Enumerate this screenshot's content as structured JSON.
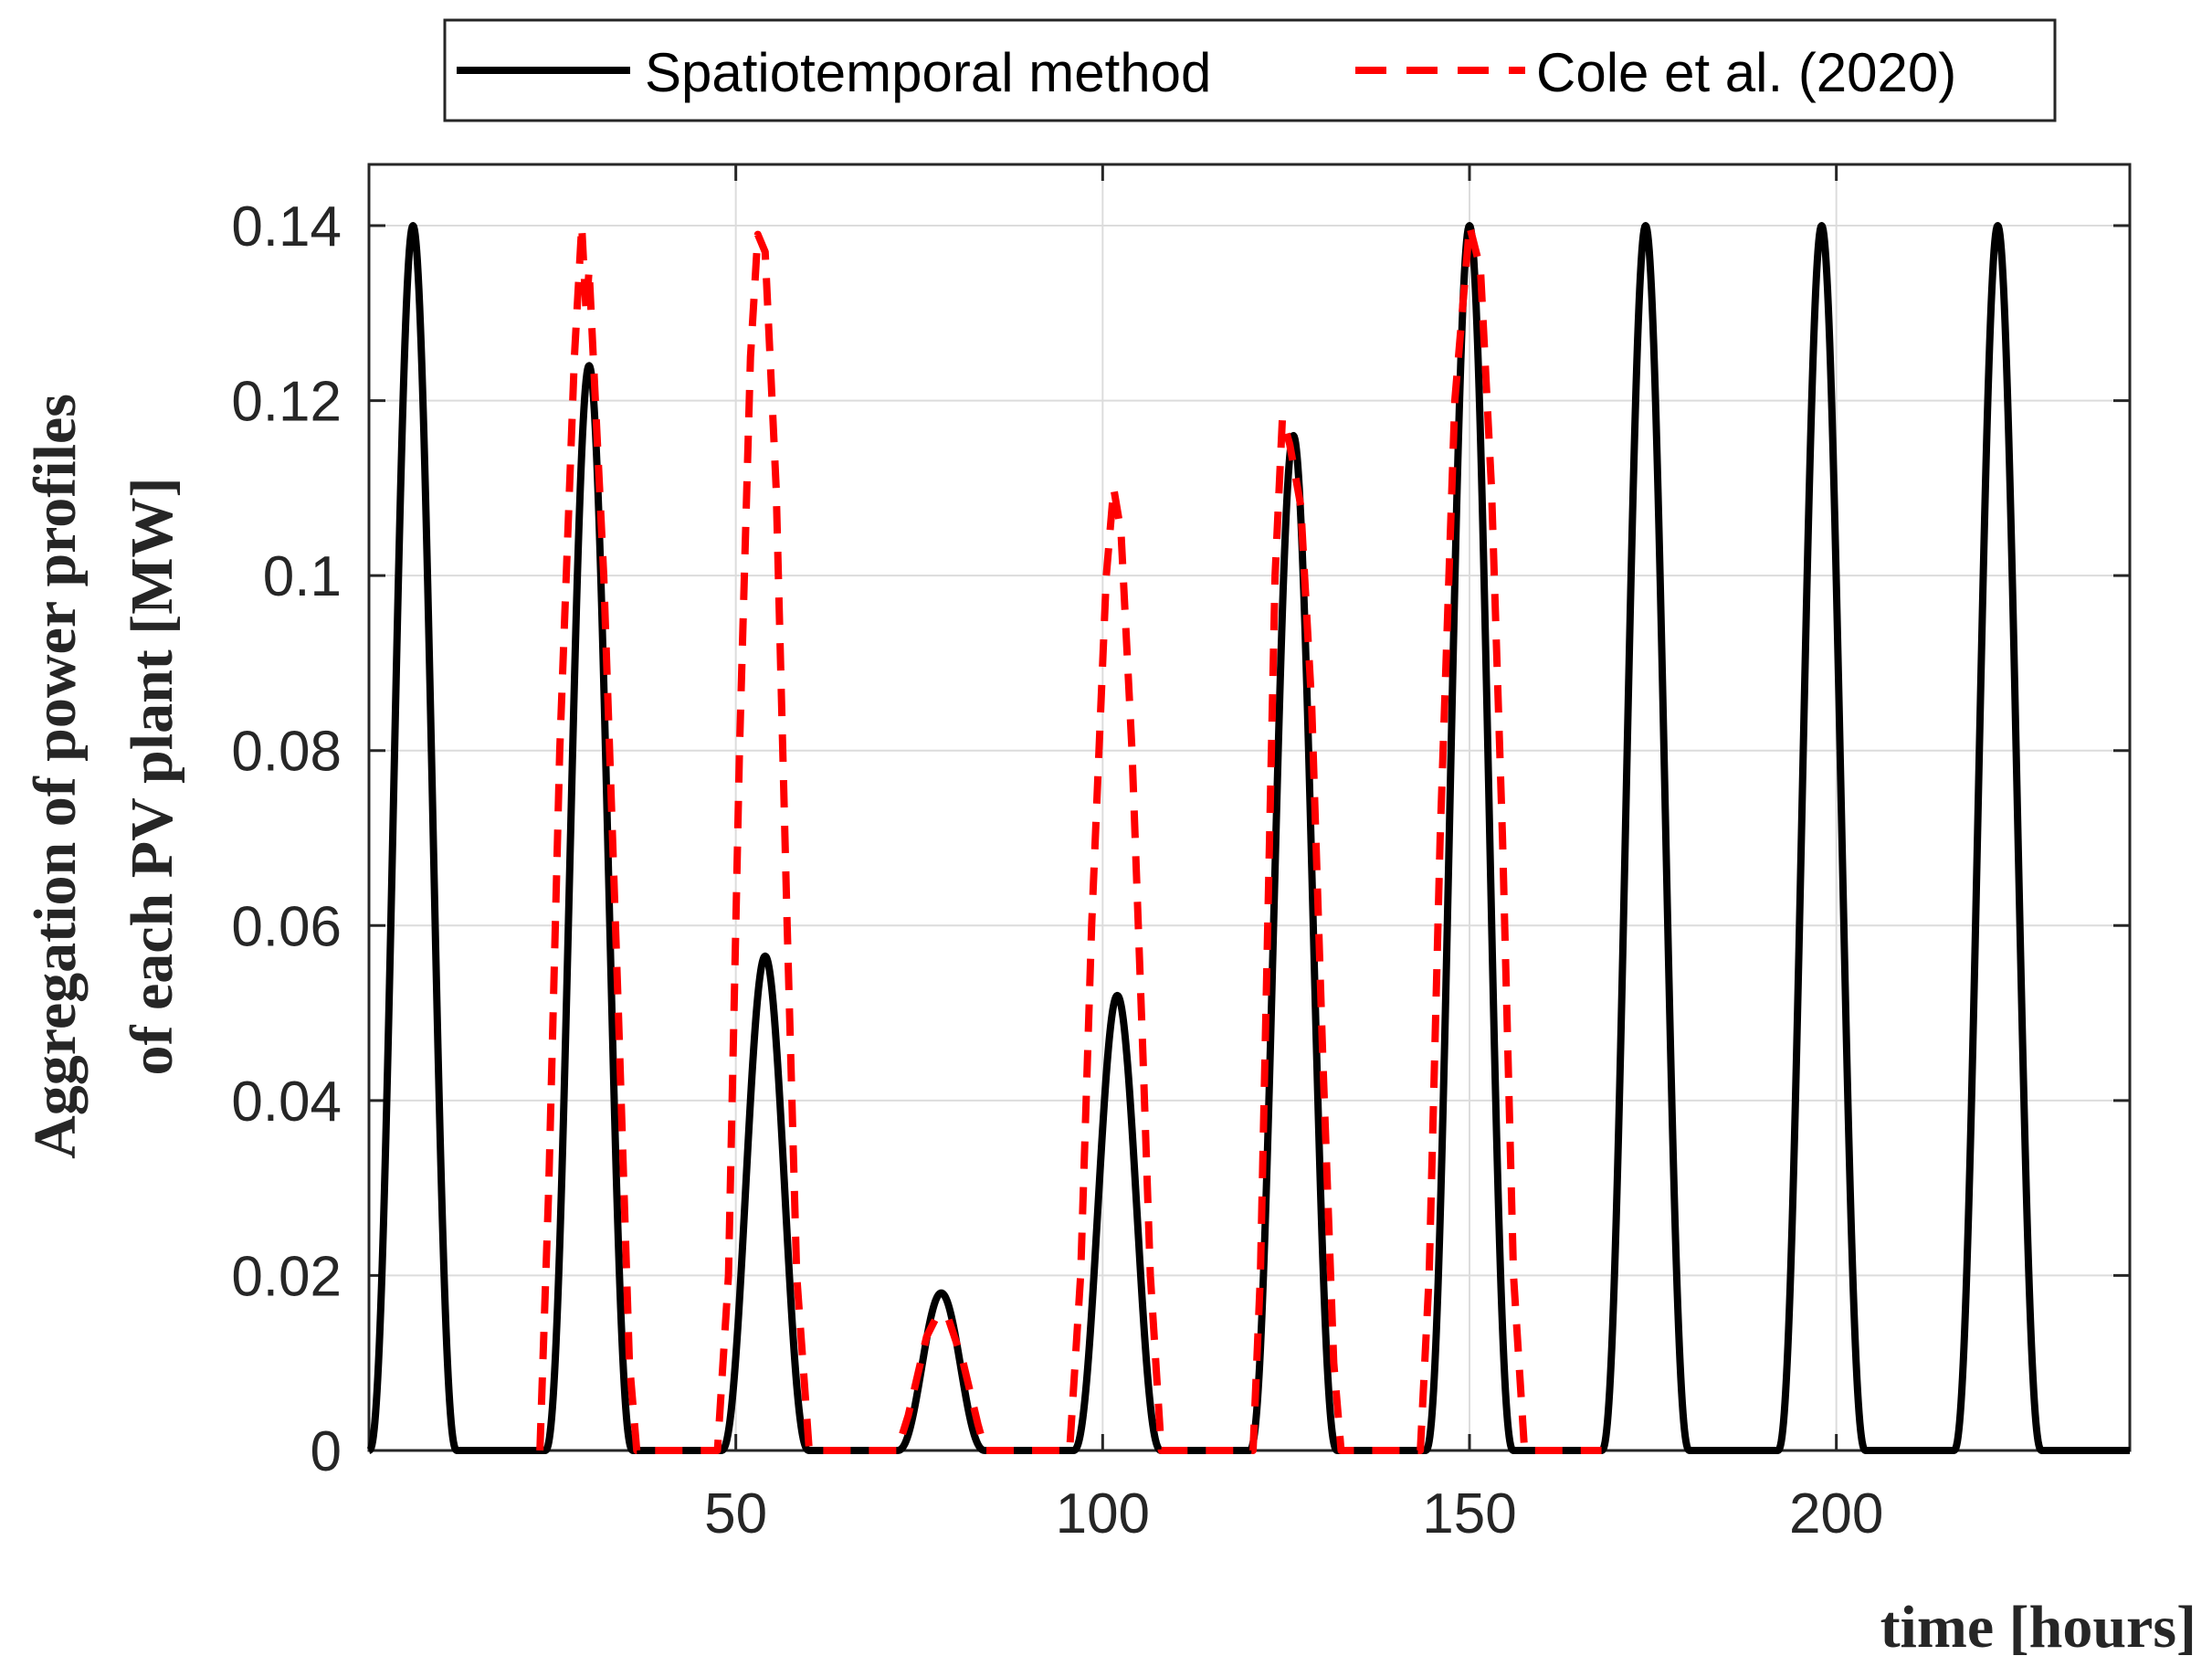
{
  "chart_data": {
    "type": "line",
    "title": "",
    "xlabel": "time [hours]",
    "ylabel_line1": "Aggregation of power profiles",
    "ylabel_line2": "of each PV plant [MW]",
    "xlim": [
      0,
      240
    ],
    "ylim": [
      0,
      0.147
    ],
    "xticks": [
      50,
      100,
      150,
      200
    ],
    "xtick_labels": [
      "50",
      "100",
      "150",
      "200"
    ],
    "yticks": [
      0,
      0.02,
      0.04,
      0.06,
      0.08,
      0.1,
      0.12,
      0.14
    ],
    "ytick_labels": [
      "0",
      "0.02",
      "0.04",
      "0.06",
      "0.08",
      "0.1",
      "0.12",
      "0.14"
    ],
    "grid": true,
    "legend_position": "top",
    "series": [
      {
        "name": "Spatiotemporal method",
        "color": "#000000",
        "style": "solid",
        "description": "Daily sinusoidal-like PV peaks; peak hour and daily maximum per day",
        "day_centers": [
          6,
          30,
          54,
          78,
          102,
          126,
          150,
          174,
          198,
          222
        ],
        "day_peaks": [
          0.14,
          0.124,
          0.0565,
          0.018,
          0.052,
          0.116,
          0.14,
          0.14,
          0.14,
          0.14
        ],
        "half_width_hours": 6
      },
      {
        "name": "Cole et al. (2020)",
        "color": "#ff0000",
        "style": "dashed",
        "points": [
          [
            23.3,
            0
          ],
          [
            24.5,
            0.03
          ],
          [
            26,
            0.08
          ],
          [
            28,
            0.125
          ],
          [
            29,
            0.14
          ],
          [
            29.6,
            0.13
          ],
          [
            30,
            0.135
          ],
          [
            32,
            0.1
          ],
          [
            34,
            0.05
          ],
          [
            35.5,
            0.01
          ],
          [
            36.5,
            0
          ],
          [
            40,
            0
          ],
          [
            47.5,
            0
          ],
          [
            49,
            0.02
          ],
          [
            50.5,
            0.08
          ],
          [
            52,
            0.125
          ],
          [
            53,
            0.139
          ],
          [
            54,
            0.137
          ],
          [
            55.5,
            0.11
          ],
          [
            57,
            0.06
          ],
          [
            58.3,
            0.02
          ],
          [
            60,
            0
          ],
          [
            72,
            0
          ],
          [
            73.5,
            0.004
          ],
          [
            76,
            0.013
          ],
          [
            77.5,
            0.0155
          ],
          [
            79,
            0.015
          ],
          [
            81,
            0.01
          ],
          [
            83,
            0.003
          ],
          [
            84,
            0
          ],
          [
            91,
            0
          ],
          [
            95.5,
            0
          ],
          [
            97,
            0.02
          ],
          [
            98.5,
            0.06
          ],
          [
            100.5,
            0.1
          ],
          [
            101.5,
            0.11
          ],
          [
            102.5,
            0.105
          ],
          [
            104,
            0.08
          ],
          [
            105.5,
            0.045
          ],
          [
            106.5,
            0.02
          ],
          [
            108,
            0
          ],
          [
            113,
            0
          ],
          [
            120.5,
            0
          ],
          [
            121.5,
            0.02
          ],
          [
            122.5,
            0.06
          ],
          [
            123.5,
            0.1
          ],
          [
            124.5,
            0.118
          ],
          [
            125.5,
            0.115
          ],
          [
            127,
            0.108
          ],
          [
            128.5,
            0.085
          ],
          [
            130,
            0.045
          ],
          [
            131.5,
            0.01
          ],
          [
            132.5,
            0
          ],
          [
            138,
            0
          ],
          [
            143.3,
            0
          ],
          [
            144.5,
            0.02
          ],
          [
            146,
            0.07
          ],
          [
            148,
            0.12
          ],
          [
            150,
            0.14
          ],
          [
            151.5,
            0.135
          ],
          [
            153,
            0.11
          ],
          [
            154.5,
            0.07
          ],
          [
            156,
            0.02
          ],
          [
            157.5,
            0
          ],
          [
            168,
            0
          ]
        ]
      }
    ]
  }
}
